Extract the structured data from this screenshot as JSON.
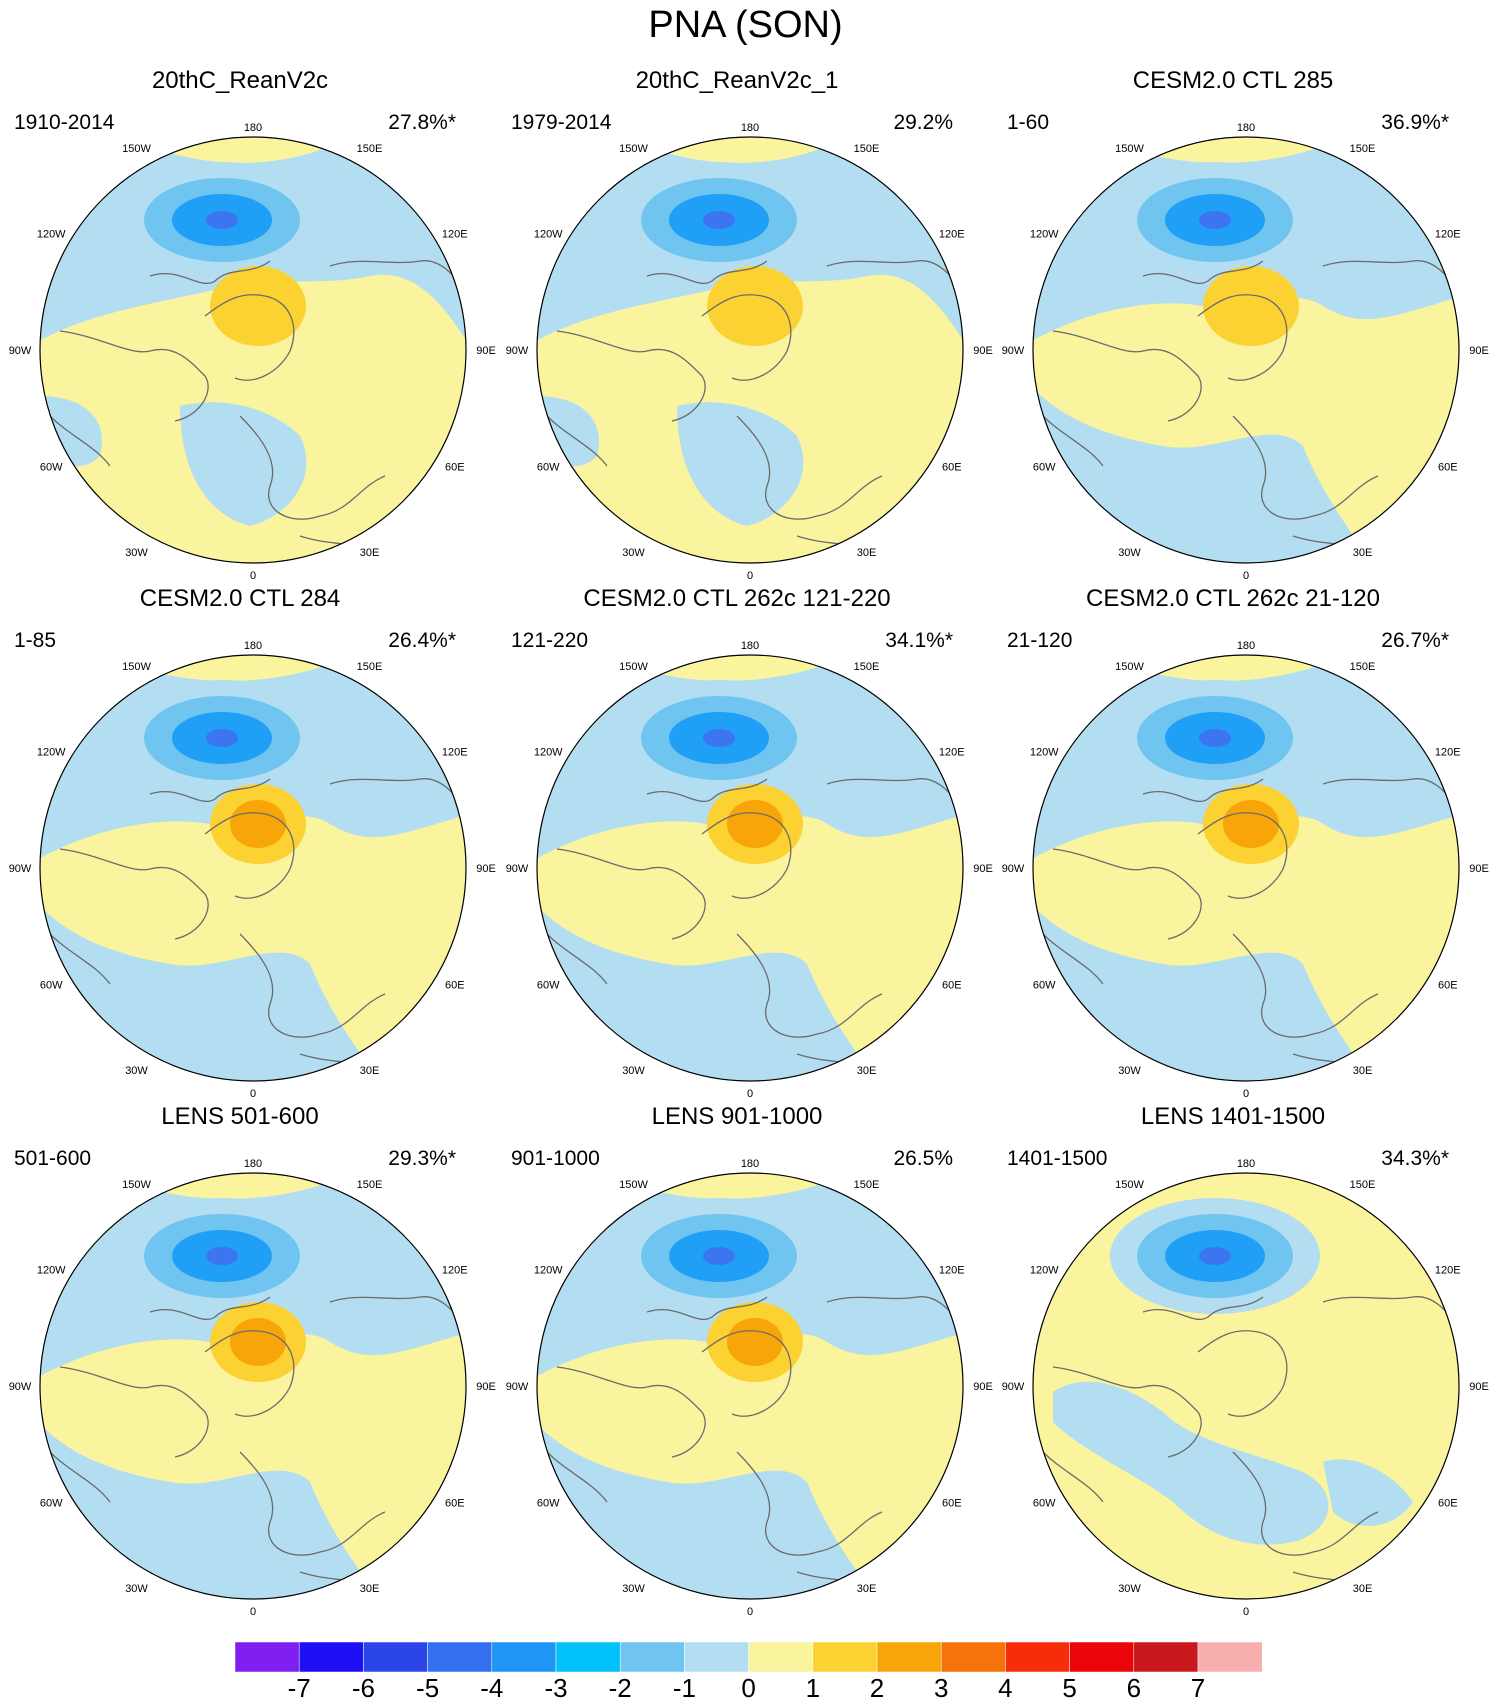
{
  "title": "PNA (SON)",
  "colors": {
    "neg1": "#b3def2",
    "neg2": "#6fc5f0",
    "neg3": "#1f9ff5",
    "neg4": "#3d74ef",
    "pos1": "#fbf49e",
    "pos2": "#fbd232",
    "pos3": "#f7a508",
    "coast": "#6b6b6b",
    "border": "#000000"
  },
  "longitude_labels": [
    "180",
    "150E",
    "120E",
    "90E",
    "60E",
    "30E",
    "0",
    "30W",
    "60W",
    "90W",
    "120W",
    "150W"
  ],
  "panels": [
    {
      "title": "20thC_ReanV2c",
      "period": "1910-2014",
      "percent": "27.8%*",
      "neg_level": 4,
      "pos_level": 2,
      "bg": "mixed"
    },
    {
      "title": "20thC_ReanV2c_1",
      "period": "1979-2014",
      "percent": "29.2%",
      "neg_level": 4,
      "pos_level": 2,
      "bg": "mixed"
    },
    {
      "title": "CESM2.0 CTL 285",
      "period": "1-60",
      "percent": "36.9%*",
      "neg_level": 4,
      "pos_level": 2,
      "bg": "blue"
    },
    {
      "title": "CESM2.0 CTL 284",
      "period": "1-85",
      "percent": "26.4%*",
      "neg_level": 4,
      "pos_level": 3,
      "bg": "blue"
    },
    {
      "title": "CESM2.0 CTL 262c 121-220",
      "period": "121-220",
      "percent": "34.1%*",
      "neg_level": 4,
      "pos_level": 3,
      "bg": "blue"
    },
    {
      "title": "CESM2.0 CTL 262c 21-120",
      "period": "21-120",
      "percent": "26.7%*",
      "neg_level": 4,
      "pos_level": 3,
      "bg": "blue"
    },
    {
      "title": "LENS 501-600",
      "period": "501-600",
      "percent": "29.3%*",
      "neg_level": 4,
      "pos_level": 3,
      "bg": "blue"
    },
    {
      "title": "LENS 901-1000",
      "period": "901-1000",
      "percent": "26.5%",
      "neg_level": 4,
      "pos_level": 3,
      "bg": "blue"
    },
    {
      "title": "LENS 1401-1500",
      "period": "1401-1500",
      "percent": "34.3%*",
      "neg_level": 4,
      "pos_level": 1,
      "bg": "yellow"
    }
  ],
  "colorbar": {
    "labels": [
      "-7",
      "-6",
      "-5",
      "-4",
      "-3",
      "-2",
      "-1",
      "0",
      "1",
      "2",
      "3",
      "4",
      "5",
      "6",
      "7"
    ],
    "colors": [
      "#7f1ff0",
      "#1f0ff5",
      "#2b45e8",
      "#336fee",
      "#1f96f5",
      "#00c1fa",
      "#6fc5f0",
      "#b3def2",
      "#fbf49e",
      "#fbd232",
      "#f7a508",
      "#f7720a",
      "#f72d0a",
      "#eb0408",
      "#c8181c",
      "#f9aeae"
    ]
  }
}
